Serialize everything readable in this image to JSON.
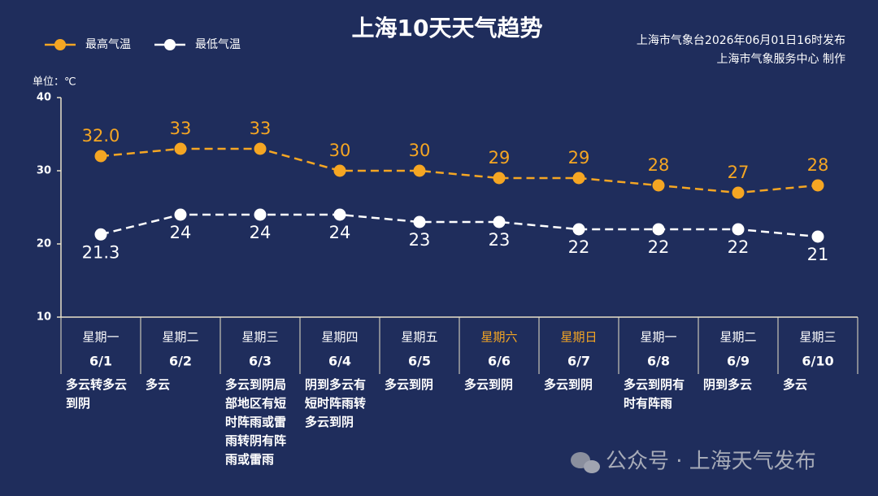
{
  "chart_data": {
    "type": "line",
    "title": "上海10天天气趋势",
    "notes": [
      "上海市气象台2026年06月01日16时发布",
      "上海市气象服务中心  制作"
    ],
    "unit_label": "单位：℃",
    "weekdays": [
      "星期一",
      "星期二",
      "星期三",
      "星期四",
      "星期五",
      "星期六",
      "星期日",
      "星期一",
      "星期二",
      "星期三"
    ],
    "weekday_colors": [
      "#ffffff",
      "#ffffff",
      "#ffffff",
      "#ffffff",
      "#ffffff",
      "#f5a623",
      "#f5a623",
      "#ffffff",
      "#ffffff",
      "#ffffff"
    ],
    "categories": [
      "6/1",
      "6/2",
      "6/3",
      "6/4",
      "6/5",
      "6/6",
      "6/7",
      "6/8",
      "6/9",
      "6/10"
    ],
    "weather": [
      "多云转多云到阴",
      "多云",
      "多云到阴局部地区有短时阵雨或雷雨转阴有阵雨或雷雨",
      "阴到多云有短时阵雨转多云到阴",
      "多云到阴",
      "多云到阴",
      "多云到阴",
      "多云到阴有时有阵雨",
      "阴到多云",
      "多云"
    ],
    "series": [
      {
        "name": "最高气温",
        "color": "#f5a623",
        "values": [
          32.0,
          33,
          33,
          30,
          30,
          29,
          29,
          28,
          27,
          28
        ],
        "value_labels": [
          "32.0",
          "33",
          "33",
          "30",
          "30",
          "29",
          "29",
          "28",
          "27",
          "28"
        ]
      },
      {
        "name": "最低气温",
        "color": "#ffffff",
        "values": [
          21.3,
          24,
          24,
          24,
          23,
          23,
          22,
          22,
          22,
          21
        ]
      }
    ],
    "ylim": [
      10,
      40
    ],
    "yticks": [
      10,
      20,
      30,
      40
    ],
    "grid": false,
    "legend": "top-left",
    "watermark": "公众号 · 上海天气发布"
  }
}
